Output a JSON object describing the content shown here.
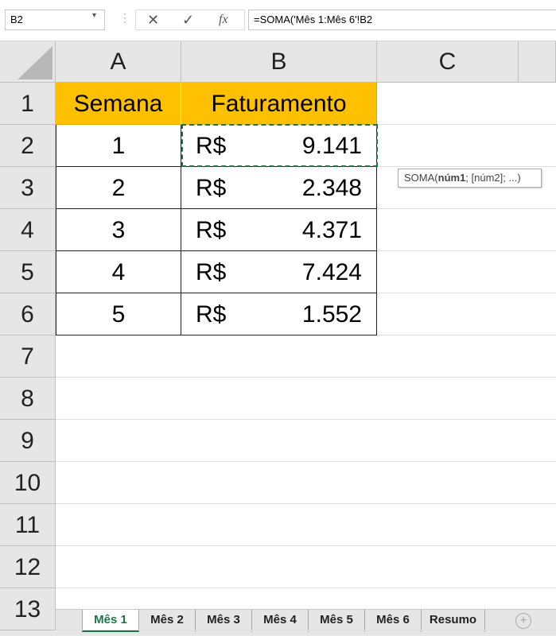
{
  "name_box": "B2",
  "formula": "=SOMA('Mês 1:Mês 6'!B2",
  "column_headers": [
    "A",
    "B",
    "C"
  ],
  "row_headers": [
    "1",
    "2",
    "3",
    "4",
    "5",
    "6",
    "7",
    "8",
    "9",
    "10",
    "11",
    "12",
    "13"
  ],
  "table": {
    "header": [
      "Semana",
      "Faturamento"
    ],
    "rows": [
      [
        "1",
        "R$",
        "9.141"
      ],
      [
        "2",
        "R$",
        "2.348"
      ],
      [
        "3",
        "R$",
        "4.371"
      ],
      [
        "4",
        "R$",
        "7.424"
      ],
      [
        "5",
        "R$",
        "1.552"
      ]
    ]
  },
  "tooltip": {
    "function": "SOMA(",
    "current_arg": "núm1",
    "rest": "; [núm2]; ...)"
  },
  "sheet_tabs": [
    "Mês 1",
    "Mês 2",
    "Mês 3",
    "Mês 4",
    "Mês 5",
    "Mês 6",
    "Resumo"
  ],
  "active_tab": 0
}
